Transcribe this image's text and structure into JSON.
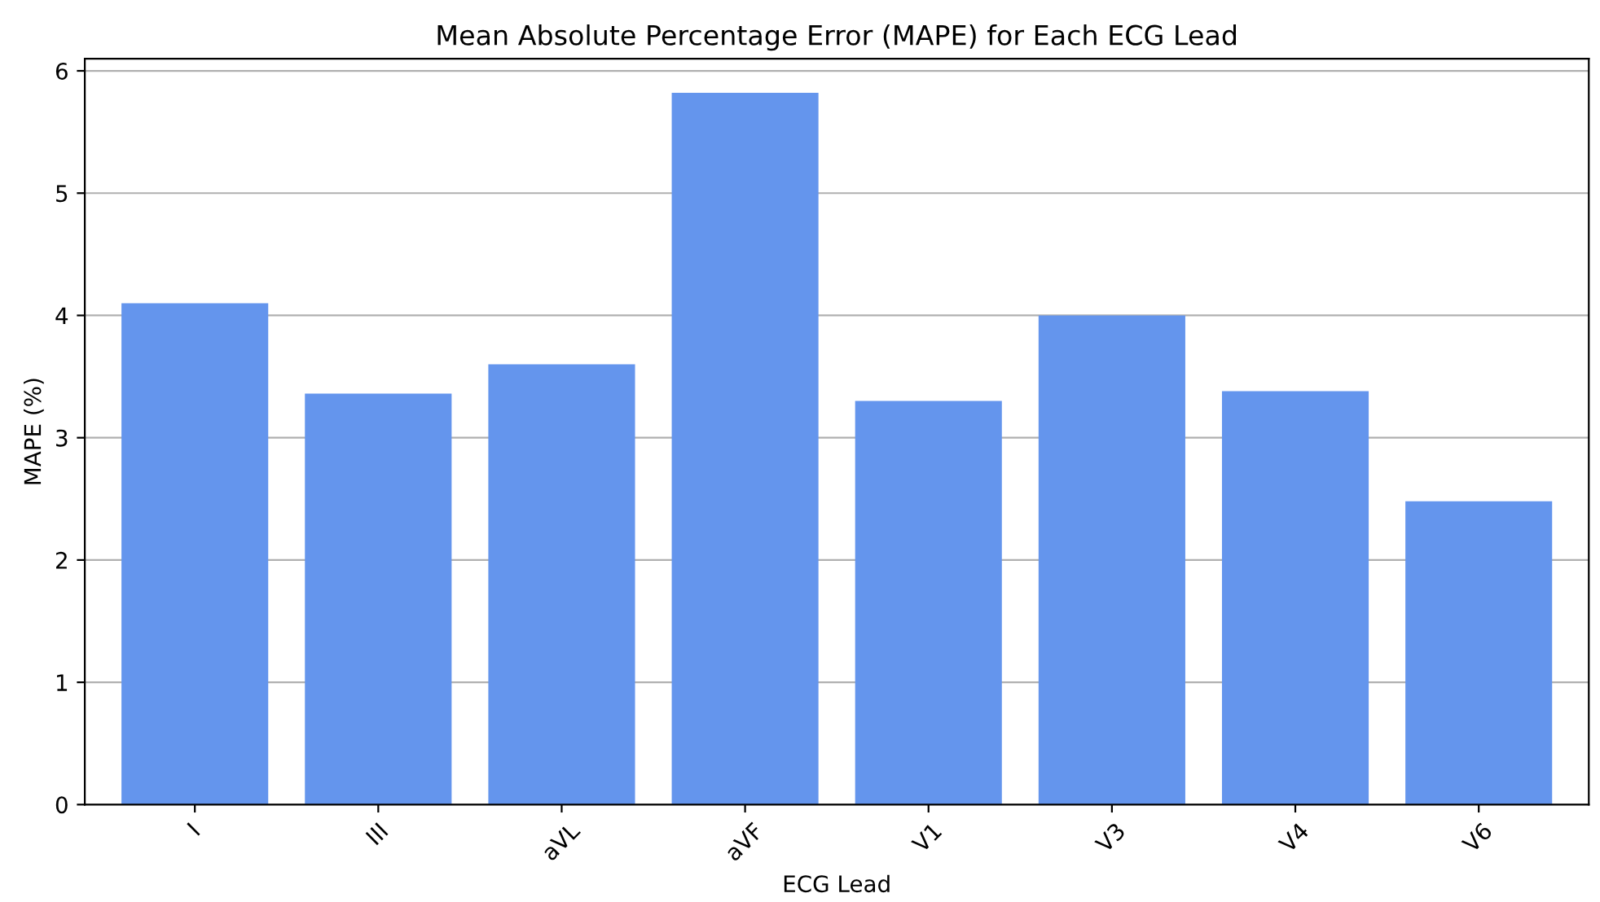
{
  "chart_data": {
    "type": "bar",
    "title": "Mean Absolute Percentage Error (MAPE) for Each ECG Lead",
    "xlabel": "ECG Lead",
    "ylabel": "MAPE (%)",
    "categories": [
      "I",
      "III",
      "aVL",
      "aVF",
      "V1",
      "V3",
      "V4",
      "V6"
    ],
    "values": [
      4.1,
      3.36,
      3.6,
      5.82,
      3.3,
      4.0,
      3.38,
      2.48
    ],
    "color": "#6495ed",
    "ylim": [
      0,
      6.1
    ],
    "yticks": [
      0,
      1,
      2,
      3,
      4,
      5,
      6
    ],
    "grid": "y"
  }
}
